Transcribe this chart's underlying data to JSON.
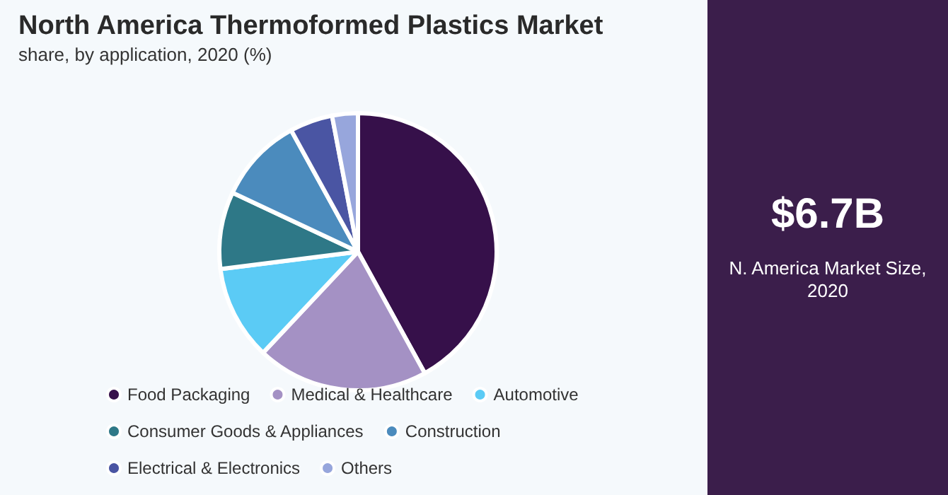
{
  "chart_data": {
    "type": "pie",
    "title": "North America Thermoformed Plastics Market",
    "subtitle": "share, by application, 2020 (%)",
    "categories": [
      "Food Packaging",
      "Medical & Healthcare",
      "Automotive",
      "Consumer Goods & Appliances",
      "Construction",
      "Electrical & Electronics",
      "Others"
    ],
    "values": [
      42,
      20,
      11,
      9,
      10,
      5,
      3
    ],
    "colors": [
      "#36104a",
      "#a491c4",
      "#5bcbf5",
      "#2e7887",
      "#4b8bbd",
      "#4a55a3",
      "#97a6dc"
    ],
    "legend": "bottom",
    "annotations": [
      "$6.7B",
      "N. America Market Size, 2020"
    ]
  }
}
